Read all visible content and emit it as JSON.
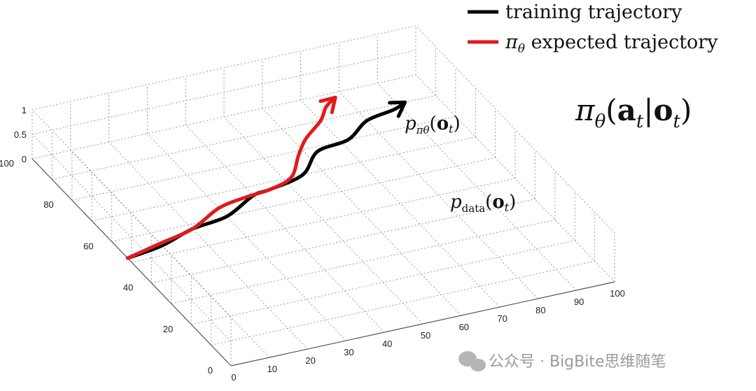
{
  "chart_data": {
    "type": "line",
    "series": [
      {
        "name": "training trajectory",
        "color": "#000000",
        "x": [
          0,
          10,
          20,
          30,
          40,
          45,
          55,
          63,
          72,
          80,
          88,
          92
        ],
        "y": [
          52,
          54,
          58,
          60,
          66,
          67,
          70,
          78,
          80,
          86,
          88,
          90
        ]
      },
      {
        "name": "π_θ expected trajectory",
        "color": "#e01b1b",
        "x": [
          0,
          10,
          20,
          30,
          38,
          45,
          52,
          58,
          63,
          70,
          74,
          78
        ],
        "y": [
          52,
          55,
          58,
          64,
          66,
          67,
          70,
          78,
          84,
          90,
          95,
          98
        ]
      }
    ],
    "axes": {
      "x_ticks": [
        "0",
        "10",
        "20",
        "30",
        "40",
        "50",
        "60",
        "70",
        "80",
        "90",
        "100"
      ],
      "y_ticks": [
        "0",
        "20",
        "40",
        "60",
        "80",
        "100"
      ],
      "z_ticks": [
        "0",
        "0.5",
        "1"
      ],
      "xlim": [
        0,
        100
      ],
      "ylim": [
        0,
        100
      ],
      "zlim": [
        0,
        1
      ],
      "grid": true
    },
    "legend": {
      "position": "top-right",
      "items": [
        "training trajectory",
        "π_θ expected trajectory"
      ]
    }
  },
  "annotations": {
    "red_label": "p_πθ(o_t)",
    "black_label": "p_data(o_t)",
    "policy": "π_θ(a_t|o_t)"
  },
  "watermark": "公众号 · BigBite思维随笔"
}
